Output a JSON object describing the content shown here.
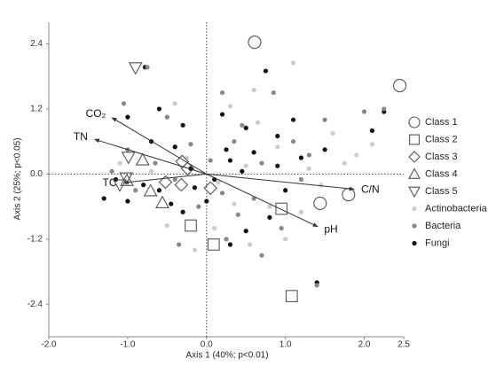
{
  "chart_data": {
    "type": "scatter",
    "xlabel": "Axis 1 (40%; p<0.01)",
    "ylabel": "Axis 2 (25%; p<0.05)",
    "xlim": [
      -2.0,
      2.5
    ],
    "ylim": [
      -3.0,
      2.8
    ],
    "xticks": [
      {
        "value": -2.0,
        "label": "-2.0"
      },
      {
        "value": -1.0,
        "label": "-1.0"
      },
      {
        "value": 0.0,
        "label": "0.0"
      },
      {
        "value": 1.0,
        "label": "1.0"
      },
      {
        "value": 2.0,
        "label": "2.0"
      },
      2.5
    ],
    "yticks": [
      -2.4,
      -1.2,
      {
        "value": 0.0,
        "label": "0.0"
      },
      1.2,
      2.4
    ],
    "zero_lines": true,
    "legend": "right",
    "series": [
      {
        "name": "Class 1",
        "marker": "circle",
        "color": "#555555",
        "x": [
          0.61,
          2.45,
          1.44,
          1.8
        ],
        "y": [
          2.43,
          1.63,
          -0.54,
          -0.38
        ]
      },
      {
        "name": "Class 2",
        "marker": "square",
        "color": "#555555",
        "x": [
          0.95,
          -0.2,
          0.09,
          1.08
        ],
        "y": [
          -0.64,
          -0.95,
          -1.3,
          -2.25
        ]
      },
      {
        "name": "Class 3",
        "marker": "diamond",
        "color": "#555555",
        "x": [
          -0.31,
          -0.24,
          -0.32,
          0.05,
          -0.52
        ],
        "y": [
          0.23,
          0.1,
          -0.2,
          -0.26,
          -0.15
        ]
      },
      {
        "name": "Class 4",
        "marker": "triangle",
        "color": "#555555",
        "x": [
          -0.81,
          -1.01,
          -0.71,
          -0.56
        ],
        "y": [
          0.26,
          -0.12,
          -0.31,
          -0.53
        ]
      },
      {
        "name": "Class 5",
        "marker": "triangle-down",
        "color": "#555555",
        "x": [
          -0.9,
          -0.99,
          -1.02,
          -1.1
        ],
        "y": [
          1.96,
          0.31,
          -0.07,
          -0.2
        ]
      },
      {
        "name": "Actinobacteria",
        "marker": "dot",
        "color": "#cccccc",
        "x": [
          1.1,
          0.6,
          -0.4,
          0.3,
          1.6,
          2.1,
          1.75,
          1.3,
          0.9,
          0.5,
          0.15,
          -0.25,
          -0.7,
          -1.1,
          0.35,
          0.8,
          1.2,
          0.55,
          0.1,
          -0.5,
          1.0,
          1.9,
          0.65,
          -0.15,
          1.45
        ],
        "y": [
          2.05,
          1.55,
          1.3,
          1.25,
          0.75,
          0.55,
          0.2,
          0.1,
          0.5,
          0.15,
          -0.15,
          0.3,
          0.05,
          0.2,
          -0.55,
          -0.6,
          -0.7,
          -1.3,
          -1.0,
          -0.95,
          -1.2,
          0.35,
          0.95,
          -1.4,
          -0.2
        ]
      },
      {
        "name": "Bacteria",
        "marker": "dot",
        "color": "#888888",
        "x": [
          -0.75,
          -1.05,
          -0.5,
          0.2,
          0.85,
          1.5,
          2.0,
          2.25,
          -0.2,
          0.35,
          0.7,
          1.1,
          -1.2,
          -0.9,
          -0.4,
          0.2,
          0.6,
          1.2,
          0.95,
          0.4,
          -0.1,
          -0.35,
          0.25,
          1.4,
          0.45,
          -0.65,
          1.3,
          0.05,
          -1.0,
          0.7
        ],
        "y": [
          1.97,
          1.3,
          1.05,
          1.5,
          1.5,
          1.0,
          1.15,
          1.2,
          0.55,
          0.6,
          0.2,
          0.6,
          0.05,
          -0.3,
          -0.1,
          -0.35,
          -0.45,
          -0.1,
          -1.0,
          -0.75,
          -0.6,
          -1.3,
          -1.2,
          -2.05,
          0.9,
          0.2,
          0.35,
          0.25,
          0.45,
          -1.5
        ]
      },
      {
        "name": "Fungi",
        "marker": "dot",
        "color": "#111111",
        "x": [
          -0.78,
          -1.0,
          -0.6,
          -0.3,
          0.2,
          0.5,
          0.25,
          -0.4,
          -0.7,
          -1.15,
          -1.3,
          -1.0,
          -0.6,
          -0.2,
          0.1,
          0.3,
          0.6,
          0.9,
          1.2,
          1.5,
          2.1,
          2.25,
          1.0,
          0.8,
          0.5,
          -0.3,
          -0.8,
          0.0,
          0.75,
          0.3,
          -0.45,
          1.4,
          0.45,
          -0.15,
          1.1,
          0.9
        ],
        "y": [
          1.97,
          1.05,
          1.2,
          0.9,
          1.1,
          0.85,
          0.45,
          0.5,
          0.6,
          -0.1,
          -0.45,
          -0.5,
          -0.3,
          0.1,
          -0.1,
          0.25,
          0.4,
          0.15,
          0.3,
          0.45,
          0.8,
          1.15,
          -0.3,
          -0.8,
          -1.05,
          -0.7,
          -0.2,
          -0.5,
          1.9,
          -1.3,
          -0.55,
          -2.0,
          0.05,
          -0.25,
          1.0,
          0.7
        ]
      }
    ],
    "vector_color": "#333333",
    "vectors": [
      {
        "name": "CO₂",
        "x": -1.2,
        "y": 1.04
      },
      {
        "name": "TN",
        "x": -1.42,
        "y": 0.64
      },
      {
        "name": "TC",
        "x": -1.05,
        "y": -0.16
      },
      {
        "name": "C/N",
        "x": 1.87,
        "y": -0.28
      },
      {
        "name": "pH",
        "x": 1.41,
        "y": -0.97
      }
    ]
  }
}
